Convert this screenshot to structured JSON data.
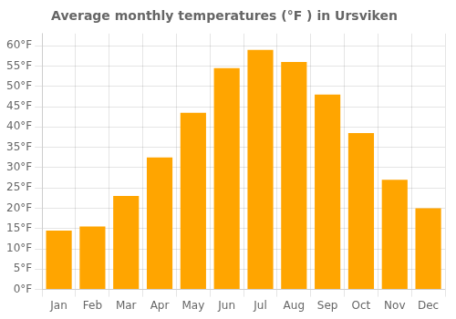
{
  "chart_data": {
    "type": "bar",
    "title": "Average monthly temperatures (°F ) in Ursviken",
    "categories": [
      "Jan",
      "Feb",
      "Mar",
      "Apr",
      "May",
      "Jun",
      "Jul",
      "Aug",
      "Sep",
      "Oct",
      "Nov",
      "Dec"
    ],
    "values": [
      14.5,
      15.5,
      23.0,
      32.5,
      43.5,
      54.5,
      59.0,
      56.0,
      48.0,
      38.5,
      27.0,
      20.0
    ],
    "color": "#FFA500",
    "ylim": [
      0,
      63
    ],
    "yticks": [
      {
        "value": 0,
        "label": "0°F"
      },
      {
        "value": 5,
        "label": "5°F"
      },
      {
        "value": 10,
        "label": "10°F"
      },
      {
        "value": 15,
        "label": "15°F"
      },
      {
        "value": 20,
        "label": "20°F"
      },
      {
        "value": 25,
        "label": "25°F"
      },
      {
        "value": 30,
        "label": "30°F"
      },
      {
        "value": 35,
        "label": "35°F"
      },
      {
        "value": 40,
        "label": "40°F"
      },
      {
        "value": 45,
        "label": "45°F"
      },
      {
        "value": 50,
        "label": "50°F"
      },
      {
        "value": 55,
        "label": "55°F"
      },
      {
        "value": 60,
        "label": "60°F"
      }
    ],
    "grid": true
  }
}
